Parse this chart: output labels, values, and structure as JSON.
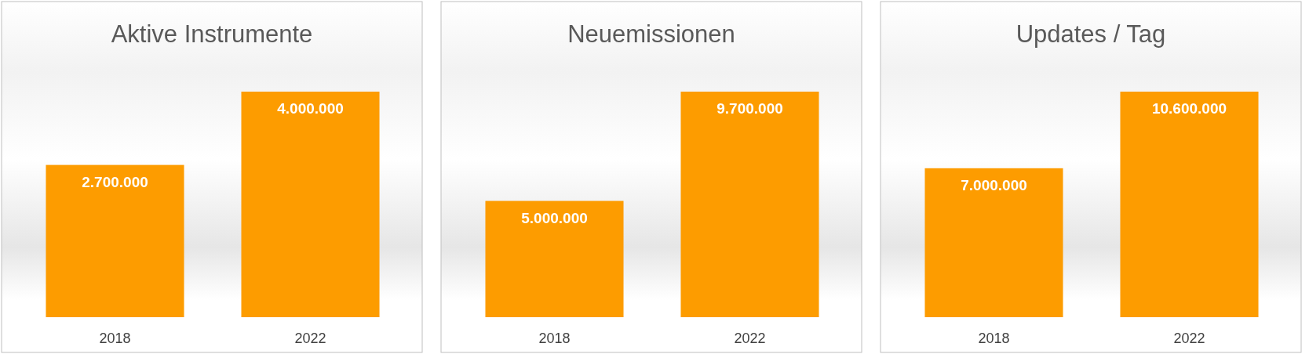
{
  "chart_data": [
    {
      "type": "bar",
      "title": "Aktive Instrumente",
      "categories": [
        "2018",
        "2022"
      ],
      "values": [
        2700000,
        4000000
      ],
      "value_labels": [
        "2.700.000",
        "4.000.000"
      ],
      "color": "#fd9c00",
      "tick_labels": "x"
    },
    {
      "type": "bar",
      "title": "Neuemissionen",
      "categories": [
        "2018",
        "2022"
      ],
      "values": [
        5000000,
        9700000
      ],
      "value_labels": [
        "5.000.000",
        "9.700.000"
      ],
      "color": "#fd9c00",
      "tick_labels": "x"
    },
    {
      "type": "bar",
      "title": "Updates / Tag",
      "categories": [
        "2018",
        "2022"
      ],
      "values": [
        7000000,
        10600000
      ],
      "value_labels": [
        "7.000.000",
        "10.600.000"
      ],
      "color": "#fd9c00",
      "tick_labels": "x"
    }
  ]
}
